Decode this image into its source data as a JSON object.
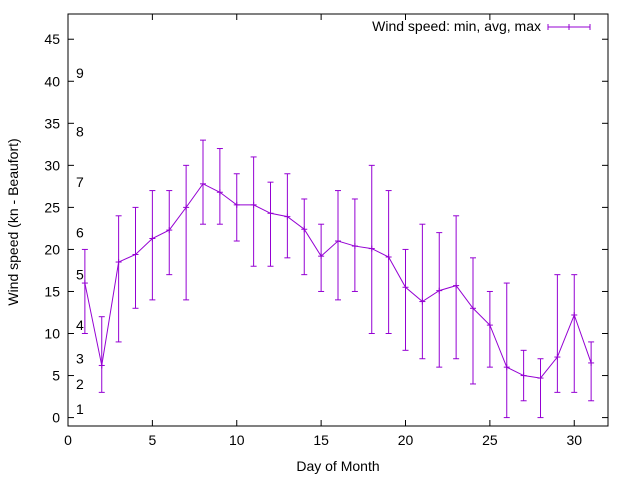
{
  "chart_data": {
    "type": "line",
    "xlabel": "Day of Month",
    "ylabel": "Wind speed (kn - Beaufort)",
    "xlim": [
      0,
      32
    ],
    "ylim": [
      -1,
      48
    ],
    "x_ticks": [
      0,
      5,
      10,
      15,
      20,
      25,
      30
    ],
    "y_ticks": [
      0,
      5,
      10,
      15,
      20,
      25,
      30,
      35,
      40,
      45
    ],
    "grid": false,
    "legend_position": "top-right",
    "series": [
      {
        "name": "Wind speed: min, avg, max",
        "color": "#9400d3",
        "style": "yerrorlines",
        "x": [
          1,
          2,
          3,
          4,
          5,
          6,
          7,
          8,
          9,
          10,
          11,
          12,
          13,
          14,
          15,
          16,
          17,
          18,
          19,
          20,
          21,
          22,
          23,
          24,
          25,
          26,
          27,
          28,
          29,
          30,
          31
        ],
        "avg": [
          16,
          6.2,
          18.5,
          19.4,
          21.3,
          22.3,
          25,
          27.8,
          26.8,
          25.3,
          25.3,
          24.3,
          23.9,
          22.4,
          19.2,
          21,
          20.4,
          20.1,
          19.1,
          15.5,
          13.8,
          15.1,
          15.7,
          13,
          11,
          6,
          5,
          4.7,
          7.2,
          12.2,
          6.5
        ],
        "min": [
          10,
          3,
          9,
          13,
          14,
          17,
          14,
          23,
          23,
          21,
          18,
          18,
          19,
          17,
          15,
          14,
          15,
          10,
          10,
          8,
          7,
          6,
          7,
          4,
          6,
          0,
          2,
          0,
          3,
          3,
          2
        ],
        "max": [
          20,
          12,
          24,
          25,
          27,
          27,
          30,
          33,
          32,
          29,
          31,
          28,
          29,
          26,
          23,
          27,
          26,
          30,
          27,
          20,
          23,
          22,
          24,
          19,
          15,
          16,
          8,
          7,
          17,
          17,
          9
        ]
      }
    ],
    "annotations": [
      {
        "text": "1",
        "y": 1
      },
      {
        "text": "2",
        "y": 4
      },
      {
        "text": "3",
        "y": 7
      },
      {
        "text": "4",
        "y": 11
      },
      {
        "text": "5",
        "y": 17
      },
      {
        "text": "6",
        "y": 22
      },
      {
        "text": "7",
        "y": 28
      },
      {
        "text": "8",
        "y": 34
      },
      {
        "text": "9",
        "y": 41
      }
    ]
  }
}
